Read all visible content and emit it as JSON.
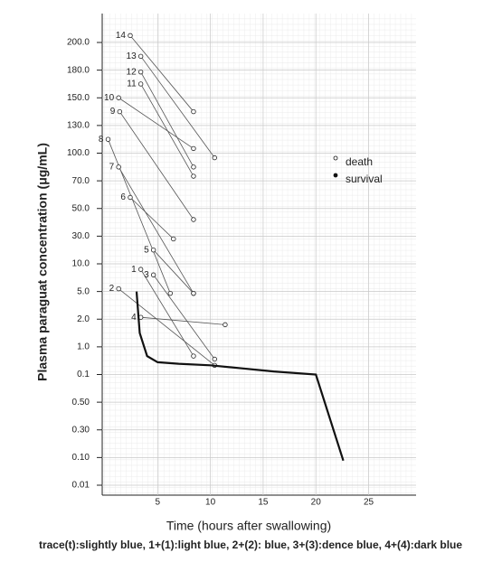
{
  "chart_data": {
    "type": "line",
    "y_label": "Plasma paraguat concentration  (μg/mL)",
    "x_label": "Time  (hours after swallowing)",
    "caption": "trace(t):slightly blue, 1+(1):light blue, 2+(2): blue, 3+(3):dence blue, 4+(4):dark blue",
    "xlim": [
      0,
      29.5
    ],
    "xticks": [
      5,
      10,
      15,
      20,
      25
    ],
    "yticks": [
      {
        "value": 200,
        "label": "200.0"
      },
      {
        "value": 180,
        "label": "180.0"
      },
      {
        "value": 150,
        "label": "150.0"
      },
      {
        "value": 130,
        "label": "130.0"
      },
      {
        "value": 100,
        "label": "100.0"
      },
      {
        "value": 70,
        "label": "70.0"
      },
      {
        "value": 50,
        "label": "50.0"
      },
      {
        "value": 30,
        "label": "30.0"
      },
      {
        "value": 10,
        "label": "10.0"
      },
      {
        "value": 5,
        "label": "5.0"
      },
      {
        "value": 2,
        "label": "2.0"
      },
      {
        "value": 1,
        "label": "1.0"
      },
      0.1,
      {
        "value": 0.5,
        "label": "0.50"
      },
      {
        "value": 0.3,
        "label": "0.30"
      },
      {
        "value": 0.1,
        "label": "0.10"
      },
      0.01
    ],
    "grid": true,
    "color": "#555555",
    "legend": [
      {
        "name": "death",
        "marker": "open"
      },
      {
        "name": "survival",
        "marker": "filled"
      }
    ],
    "patients": [
      {
        "label": "14",
        "x": [
          2.4,
          8.4
        ],
        "values": [
          205,
          140
        ]
      },
      {
        "label": "13",
        "x": [
          3.4,
          10.4
        ],
        "values": [
          190,
          95
        ]
      },
      {
        "label": "12",
        "x": [
          3.4,
          8.4
        ],
        "values": [
          178,
          85
        ]
      },
      {
        "label": "11",
        "x": [
          3.4,
          8.4
        ],
        "values": [
          165,
          75
        ]
      },
      {
        "label": "10",
        "x": [
          1.3,
          8.4
        ],
        "values": [
          150,
          105
        ]
      },
      {
        "label": "9",
        "x": [
          1.4,
          8.4
        ],
        "values": [
          140,
          42
        ]
      },
      {
        "label": "8",
        "x": [
          0.3,
          6.2
        ],
        "values": [
          115,
          4.8
        ]
      },
      {
        "label": "7",
        "x": [
          1.3,
          8.4
        ],
        "values": [
          85,
          4.8
        ]
      },
      {
        "label": "6",
        "x": [
          2.4,
          6.5
        ],
        "values": [
          58,
          28
        ]
      },
      {
        "label": "5",
        "x": [
          4.6,
          8.4
        ],
        "values": [
          20,
          4.8
        ]
      },
      {
        "label": "1",
        "x": [
          3.4,
          8.4
        ],
        "values": [
          9,
          0.7
        ]
      },
      {
        "label": "3",
        "x": [
          4.6,
          10.4
        ],
        "values": [
          8,
          0.6
        ]
      },
      {
        "label": "2",
        "x": [
          1.3,
          10.4
        ],
        "values": [
          5.5,
          0.4
        ]
      },
      {
        "label": "4",
        "x": [
          3.4,
          11.4
        ],
        "values": [
          2.2,
          1.8
        ]
      }
    ],
    "trace": {
      "x": [
        3.0,
        3.3,
        4,
        5,
        7,
        10,
        13,
        16,
        20,
        22.6
      ],
      "values": [
        5,
        1.5,
        0.7,
        0.5,
        0.45,
        0.4,
        0.3,
        0.2,
        0.1,
        0.09
      ]
    }
  }
}
